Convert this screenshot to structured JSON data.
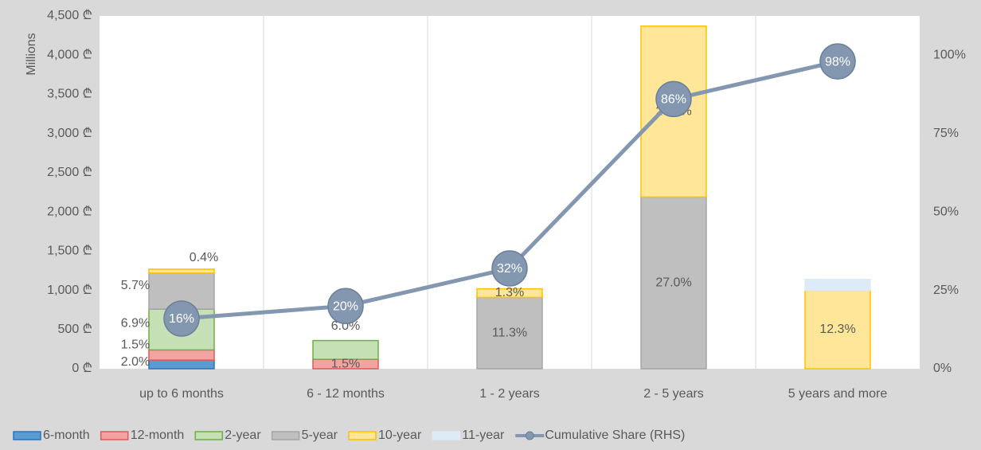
{
  "chart_data": {
    "type": "bar",
    "stacked": true,
    "y_axis_title": "Millions",
    "categories": [
      "up to 6 months",
      "6 - 12 months",
      "1 - 2 years",
      "2 - 5 years",
      "5 years and more"
    ],
    "ylim": [
      0,
      4500
    ],
    "yticks": [
      {
        "value": 0,
        "label": "0 ₾"
      },
      {
        "value": 500,
        "label": "500 ₾"
      },
      {
        "value": 1000,
        "label": "1,000 ₾"
      },
      {
        "value": 1500,
        "label": "1,500 ₾"
      },
      {
        "value": 2000,
        "label": "2,000 ₾"
      },
      {
        "value": 2500,
        "label": "2,500 ₾"
      },
      {
        "value": 3000,
        "label": "3,000 ₾"
      },
      {
        "value": 3500,
        "label": "3,500 ₾"
      },
      {
        "value": 4000,
        "label": "4,000 ₾"
      },
      {
        "value": 4500,
        "label": "4,500 ₾"
      }
    ],
    "y2lim": [
      0,
      112.5
    ],
    "y2ticks": [
      {
        "value": 0,
        "label": "0%"
      },
      {
        "value": 25,
        "label": "25%"
      },
      {
        "value": 50,
        "label": "50%"
      },
      {
        "value": 75,
        "label": "75%"
      },
      {
        "value": 100,
        "label": "100%"
      }
    ],
    "series": [
      {
        "name": "6-month",
        "color": "#5b9bd5",
        "border": "#2e75b6",
        "values": [
          110,
          null,
          null,
          null,
          null
        ],
        "data_labels": [
          "2.0%",
          null,
          null,
          null,
          null
        ]
      },
      {
        "name": "12-month",
        "color": "#f4a3a3",
        "border": "#e05a5a",
        "values": [
          130,
          120,
          null,
          null,
          null
        ],
        "data_labels": [
          "1.5%",
          "1.5%",
          null,
          null,
          null
        ]
      },
      {
        "name": "2-year",
        "color": "#c5e0b4",
        "border": "#70ad47",
        "values": [
          520,
          240,
          null,
          null,
          null
        ],
        "data_labels": [
          "6.9%",
          "6.0%",
          null,
          null,
          null
        ]
      },
      {
        "name": "5-year",
        "color": "#bfbfbf",
        "border": "#a5a5a5",
        "values": [
          460,
          null,
          910,
          2190,
          null
        ],
        "data_labels": [
          "5.7%",
          null,
          "11.3%",
          "27.0%",
          null
        ]
      },
      {
        "name": "10-year",
        "color": "#ffe699",
        "border": "#ffc000",
        "values": [
          50,
          null,
          110,
          2180,
          1000
        ],
        "data_labels": [
          "0.4%",
          null,
          "1.3%",
          "26.7%",
          "12.3%"
        ]
      },
      {
        "name": "11-year",
        "color": "#ddebf7",
        "border": "#ddebf7",
        "values": [
          null,
          null,
          null,
          null,
          140
        ],
        "data_labels": [
          null,
          null,
          null,
          null,
          null
        ]
      },
      {
        "name": "Cumulative Share (RHS)",
        "type": "line",
        "axis": "y2",
        "color": "#8497b0",
        "values": [
          16,
          20,
          32,
          86,
          98
        ],
        "value_labels": [
          "16%",
          "20%",
          "32%",
          "86%",
          "98%"
        ]
      }
    ]
  }
}
